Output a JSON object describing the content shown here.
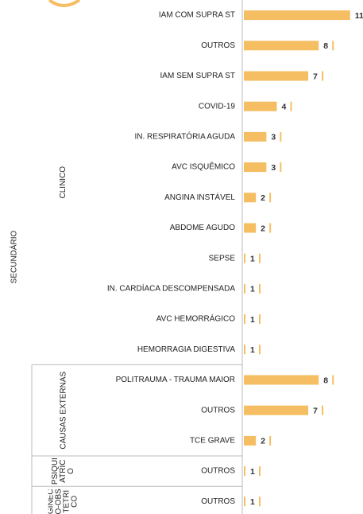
{
  "chart_data": {
    "type": "bar",
    "orientation": "horizontal",
    "color": "#f6be62",
    "outer_group": "SECUNDÁRIO",
    "groups": [
      {
        "name": "CLINICO",
        "start": 0,
        "count": 12
      },
      {
        "name": "CAUSAS EXTERNAS",
        "start": 12,
        "count": 3
      },
      {
        "name": "PSIQUIATRICO",
        "start": 15,
        "count": 1
      },
      {
        "name": "GINECO-OBSTETRICO",
        "start": 16,
        "count": 1
      }
    ],
    "categories": [
      "IAM COM SUPRA ST",
      "OUTROS",
      "IAM SEM SUPRA ST",
      "COVID-19",
      "IN. RESPIRATÓRIA AGUDA",
      "AVC ISQUÊMICO",
      "ANGINA INSTÁVEL",
      "ABDOME AGUDO",
      "SEPSE",
      "IN. CARDÍACA DESCOMPENSADA",
      "AVC HEMORRÁGICO",
      "HEMORRAGIA DIGESTIVA",
      "POLITRAUMA - TRAUMA MAIOR",
      "OUTROS",
      "TCE GRAVE",
      "OUTROS",
      "OUTROS"
    ],
    "values": [
      11,
      8,
      7,
      4,
      3,
      3,
      2,
      2,
      1,
      1,
      1,
      1,
      8,
      7,
      2,
      1,
      1
    ],
    "xlim": [
      0.85,
      11.7
    ]
  }
}
